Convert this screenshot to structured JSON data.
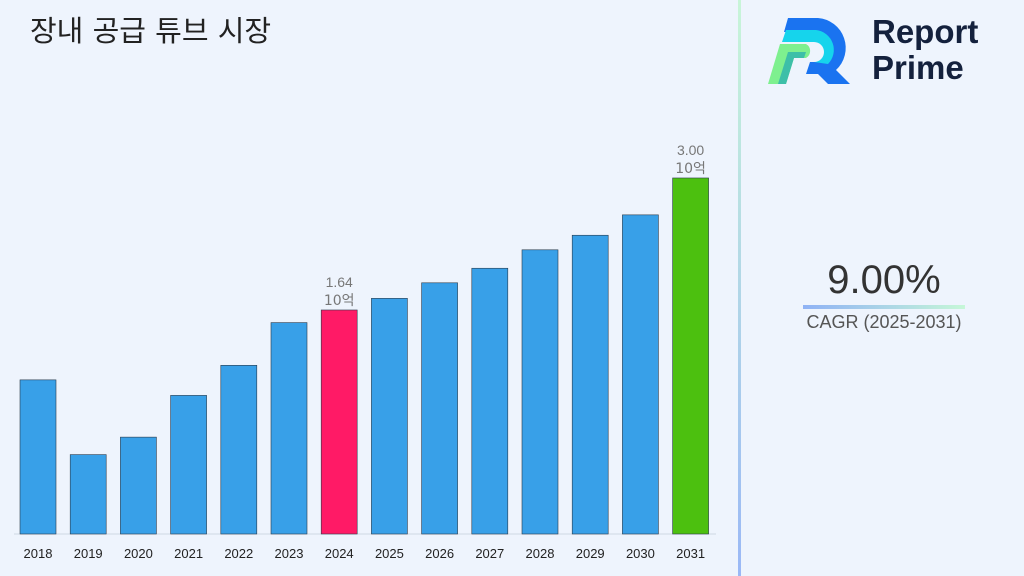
{
  "title": "장내 공급 튜브 시장",
  "logo": {
    "line1": "Report",
    "line2": "Prime"
  },
  "cagr": {
    "value": "9.00%",
    "label": "CAGR (2025-2031)"
  },
  "colors": {
    "bar": "#38a0e8",
    "highlight_2024": "#ff1a66",
    "highlight_2031": "#4cc00f",
    "background": "#eef4fd"
  },
  "chart_data": {
    "type": "bar",
    "title": "장내 공급 튜브 시장",
    "categories": [
      "2018",
      "2019",
      "2020",
      "2021",
      "2022",
      "2023",
      "2024",
      "2025",
      "2026",
      "2027",
      "2028",
      "2029",
      "2030",
      "2031"
    ],
    "values": [
      0.92,
      0.15,
      0.33,
      0.76,
      1.07,
      1.51,
      1.64,
      1.76,
      1.92,
      2.07,
      2.26,
      2.41,
      2.62,
      3.0
    ],
    "unit": "10억",
    "data_labels": [
      {
        "category": "2024",
        "value": "1.64",
        "unit": "10억"
      },
      {
        "category": "2031",
        "value": "3.00",
        "unit": "10억"
      }
    ],
    "grid": false,
    "legend": "none"
  }
}
